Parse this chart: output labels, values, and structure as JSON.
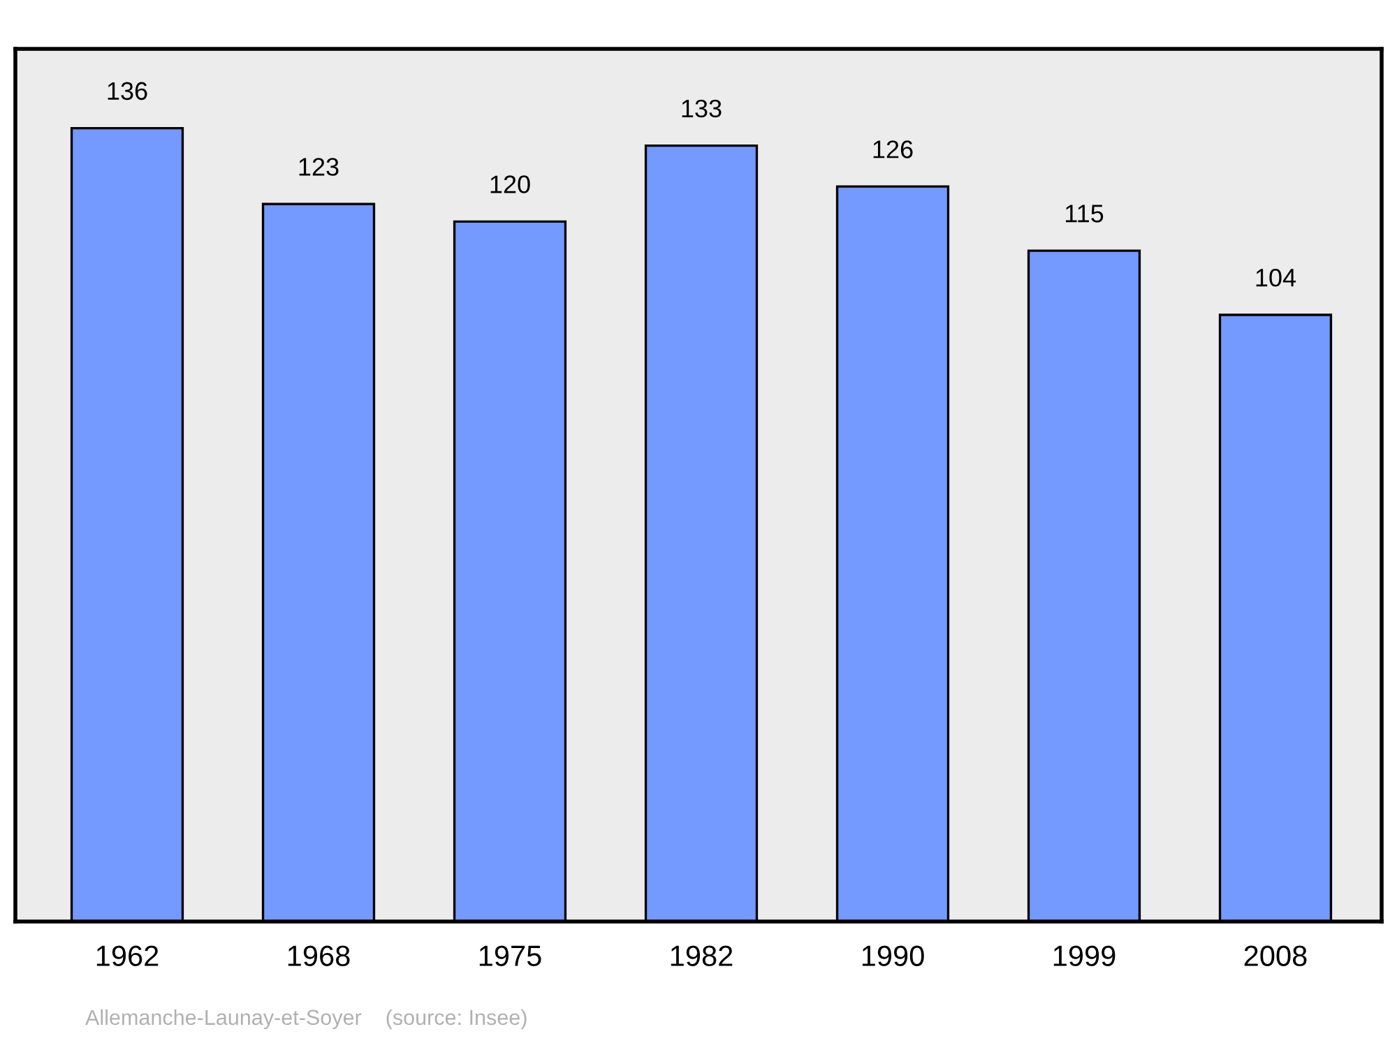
{
  "chart_data": {
    "type": "bar",
    "categories": [
      "1962",
      "1968",
      "1975",
      "1982",
      "1990",
      "1999",
      "2008"
    ],
    "values": [
      136,
      123,
      120,
      133,
      126,
      115,
      104
    ],
    "color": "#7499ff",
    "data_labels": true,
    "grid": false,
    "legend": false,
    "annotations": [
      "Allemanche-Launay-et-Soyer    (source: Insee)"
    ]
  }
}
